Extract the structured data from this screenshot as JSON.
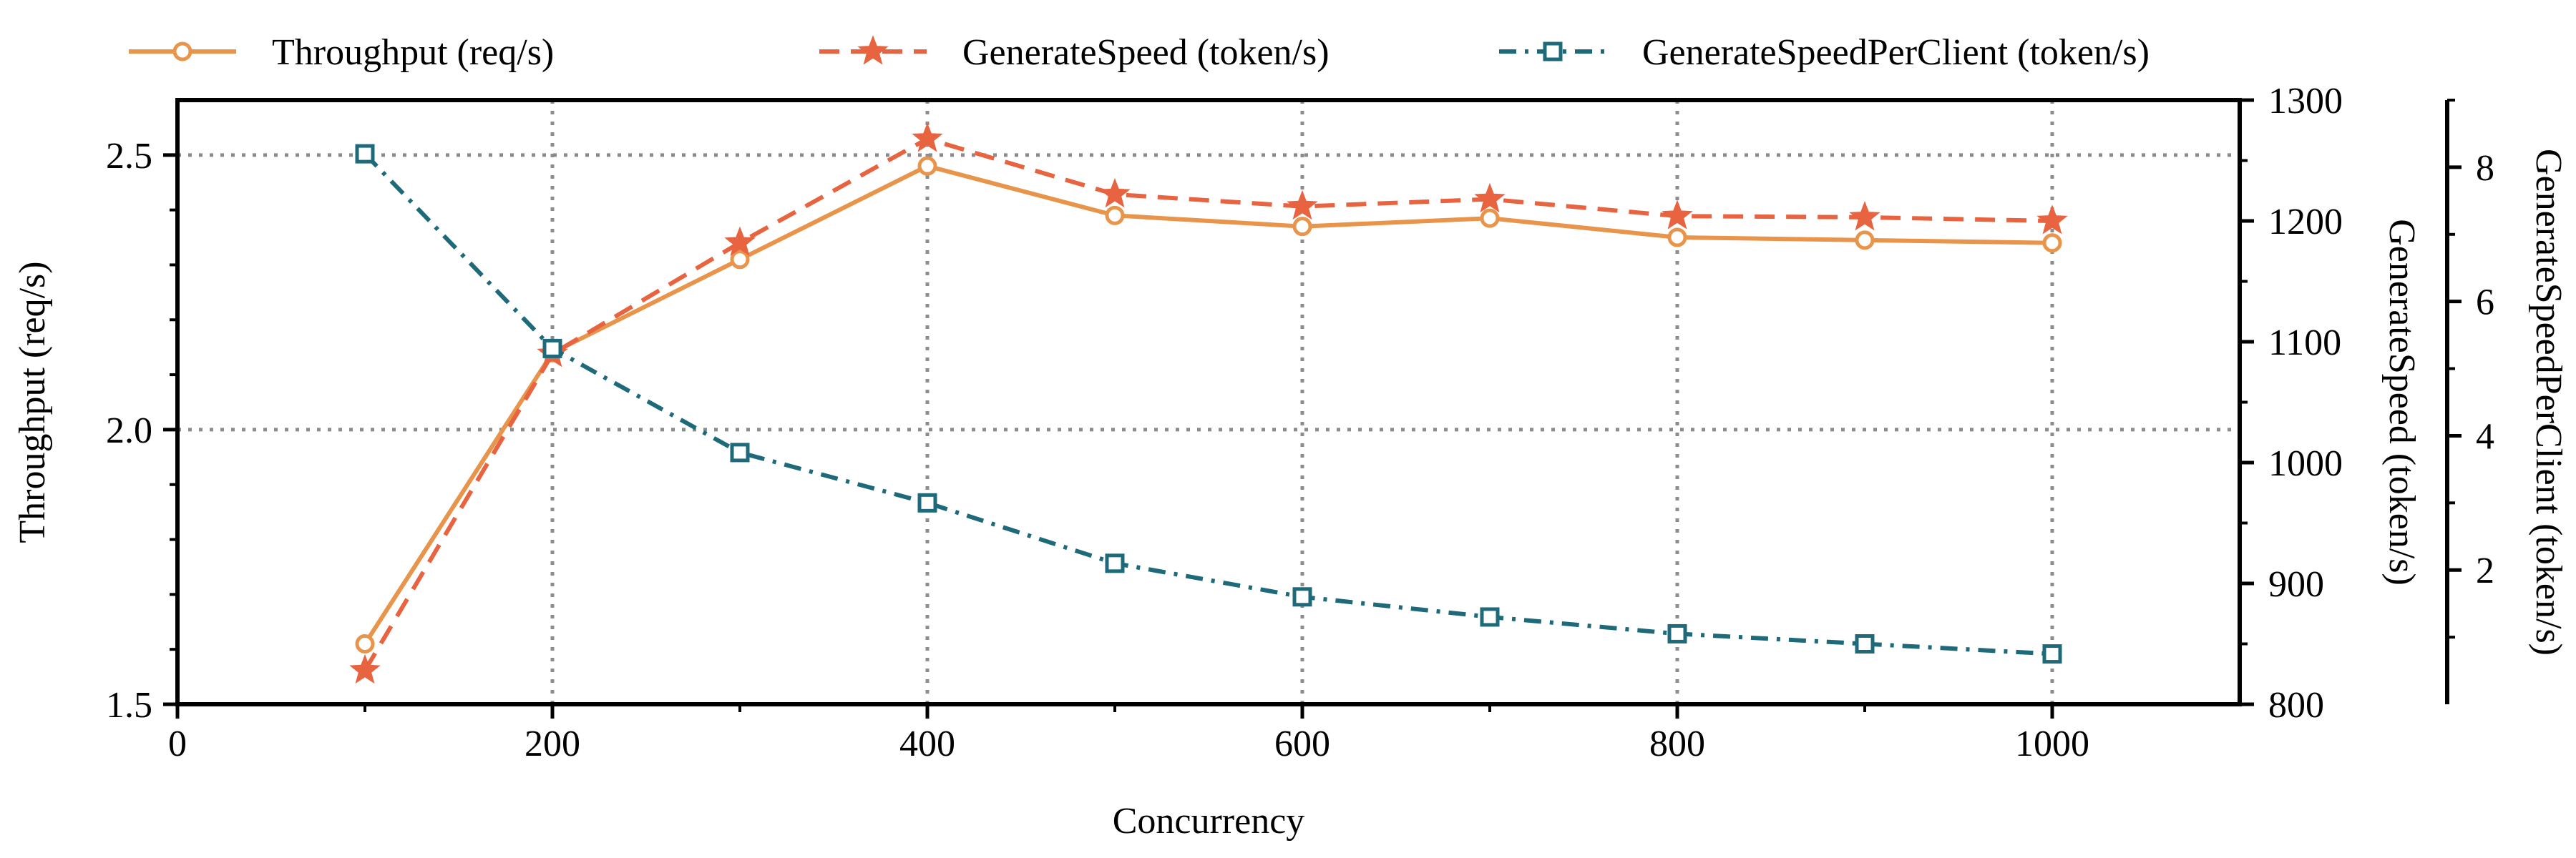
{
  "chart_data": {
    "type": "line",
    "xlabel": "Concurrency",
    "xlim": [
      0,
      1100
    ],
    "xticks": [
      0,
      200,
      400,
      600,
      800,
      1000
    ],
    "x": [
      100,
      200,
      300,
      400,
      500,
      600,
      700,
      800,
      900,
      1000
    ],
    "grid": true,
    "legend_position": "top",
    "axes": [
      {
        "id": "left",
        "label": "Throughput (req/s)",
        "ylim": [
          1.5,
          2.6
        ],
        "ticks": [
          1.5,
          2.0,
          2.5
        ],
        "tick_labels": [
          "1.5",
          "2.0",
          "2.5"
        ]
      },
      {
        "id": "right1",
        "label": "GenerateSpeed (token/s)",
        "ylim": [
          800,
          1300
        ],
        "ticks": [
          800,
          900,
          1000,
          1100,
          1200,
          1300
        ],
        "tick_labels": [
          "800",
          "900",
          "1000",
          "1100",
          "1200",
          "1300"
        ]
      },
      {
        "id": "right2",
        "label": "GenerateSpeedPerClient (token/s)",
        "ylim": [
          0,
          9
        ],
        "ticks": [
          2,
          4,
          6,
          8
        ],
        "tick_labels": [
          "2",
          "4",
          "6",
          "8"
        ]
      }
    ],
    "series": [
      {
        "name": "Throughput (req/s)",
        "axis": "left",
        "color": "#E8944A",
        "dash": "solid",
        "marker": "circle",
        "values": [
          1.61,
          2.14,
          2.31,
          2.48,
          2.39,
          2.37,
          2.385,
          2.35,
          2.345,
          2.34
        ]
      },
      {
        "name": "GenerateSpeed (token/s)",
        "axis": "right1",
        "color": "#E8633F",
        "dash": "dashed",
        "marker": "star",
        "values": [
          828,
          1090,
          1182,
          1268,
          1222,
          1212,
          1218,
          1204,
          1203,
          1200
        ]
      },
      {
        "name": "GenerateSpeedPerClient (token/s)",
        "axis": "right2",
        "color": "#1E6A7A",
        "dash": "dashdot",
        "marker": "square",
        "values": [
          8.2,
          5.3,
          3.75,
          3.0,
          2.1,
          1.6,
          1.3,
          1.05,
          0.9,
          0.75
        ]
      }
    ]
  }
}
